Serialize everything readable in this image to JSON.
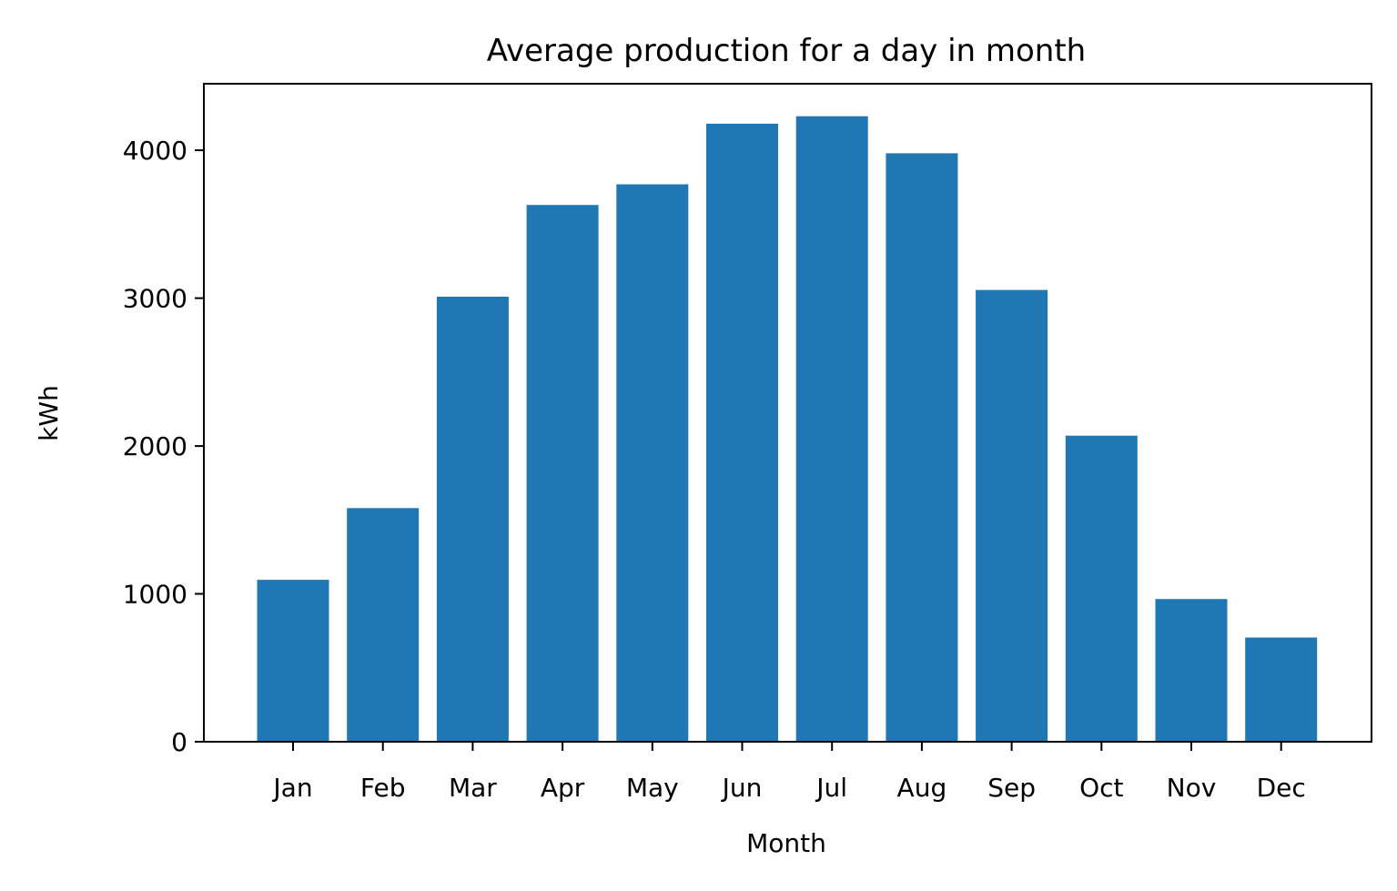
{
  "chart_data": {
    "type": "bar",
    "title": "Average production for a day in month",
    "xlabel": "Month",
    "ylabel": "kWh",
    "categories": [
      "Jan",
      "Feb",
      "Mar",
      "Apr",
      "May",
      "Jun",
      "Jul",
      "Aug",
      "Sep",
      "Oct",
      "Nov",
      "Dec"
    ],
    "values": [
      1095,
      1580,
      3010,
      3630,
      3770,
      4180,
      4230,
      3980,
      3055,
      2070,
      965,
      705
    ],
    "ylim": [
      0,
      4450
    ],
    "yticks": [
      0,
      1000,
      2000,
      3000,
      4000
    ],
    "ytick_labels": [
      "0",
      "1000",
      "2000",
      "3000",
      "4000"
    ],
    "bar_color": "#1f77b4",
    "grid": false,
    "legend": "none"
  }
}
